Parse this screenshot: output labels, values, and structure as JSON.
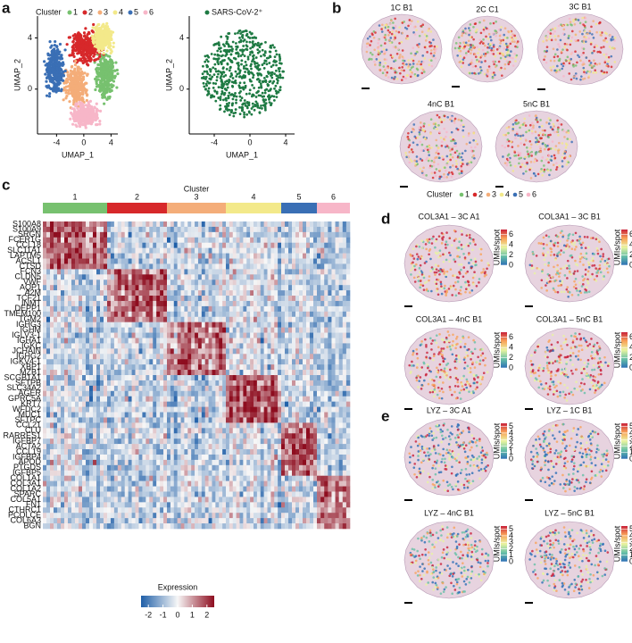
{
  "clusters": [
    {
      "label": "1",
      "color": "#77c16f"
    },
    {
      "label": "2",
      "color": "#d7282a"
    },
    {
      "label": "3",
      "color": "#f4ad79"
    },
    {
      "label": "4",
      "color": "#f3e98a"
    },
    {
      "label": "5",
      "color": "#3a6fb5"
    },
    {
      "label": "6",
      "color": "#f7b6c8"
    }
  ],
  "panel_a": {
    "letter": "a",
    "legend_title": "Cluster",
    "x_label": "UMAP_1",
    "y_label": "UMAP_2",
    "xlim": [
      -6.8,
      5
    ],
    "ylim": [
      -3.5,
      5.7
    ],
    "xticks": [
      -4,
      0,
      4
    ],
    "yticks": [
      0,
      4
    ],
    "sars_label": "SARS-CoV-2⁺",
    "sars_color": "#1e7a43"
  },
  "panel_b": {
    "letter": "b",
    "samples": [
      "1C B1",
      "2C C1",
      "3C B1",
      "4nC B1",
      "5nC B1"
    ],
    "legend_title": "Cluster"
  },
  "panel_c": {
    "letter": "c",
    "title": "Cluster",
    "gene_groups": [
      [
        "S100A8",
        "S100A9",
        "SRGN",
        "FCER1G",
        "CCL18",
        "SLC11A1",
        "LAPTM5",
        "ACSL1",
        "CTSD"
      ],
      [
        "FCN3",
        "CLDN5",
        "VWF",
        "AQP1",
        "A2M",
        "TCF21",
        "INMT",
        "DEPP1",
        "TMEM100",
        "TGM2"
      ],
      [
        "IGHG3",
        "IGHM",
        "IGLV3-1",
        "IGHA1",
        "IGKC",
        "JCHAIN",
        "IGHG2",
        "IGKV4-1",
        "XBP1",
        "MZB1"
      ],
      [
        "SCGB1A1",
        "SFTPB",
        "SLC34A2",
        "AGER",
        "GPRC5A",
        "KRT7",
        "WFDC2",
        "MUC1",
        "SFTPC"
      ],
      [
        "CCL21",
        "CLU",
        "RARRES1",
        "IGFBP7",
        "ACTA2",
        "CCL19",
        "IGFBP4",
        "APOD",
        "PTGDS",
        "IGFBP5"
      ],
      [
        "COL1A1",
        "COL3A1",
        "COL1A2",
        "SPARC",
        "COL5A1",
        "FN1",
        "CTHRC1",
        "PCOLCE",
        "COL6A3",
        "BGN"
      ]
    ],
    "colorbar_title": "Expression",
    "colorbar_lim": [
      -2.5,
      2.5
    ],
    "colorbar_ticks": [
      -2,
      -1,
      0,
      1,
      2
    ]
  },
  "panel_d": {
    "letter": "d",
    "maps": [
      "COL3A1 – 3C A1",
      "COL3A1 – 3C B1",
      "COL3A1 – 4nC B1",
      "COL3A1 – 5nC B1"
    ],
    "scale_label": "UMIs/spot",
    "lim": [
      0,
      7
    ],
    "ticks": [
      0,
      2,
      4,
      6
    ]
  },
  "panel_e": {
    "letter": "e",
    "maps": [
      "LYZ – 3C A1",
      "LYZ – 1C B1",
      "LYZ – 4nC B1",
      "LYZ – 5nC B1"
    ],
    "scale_label": "UMIs/spot",
    "lim": [
      0,
      5.5
    ],
    "ticks": [
      0,
      1,
      2,
      3,
      4,
      5
    ]
  }
}
